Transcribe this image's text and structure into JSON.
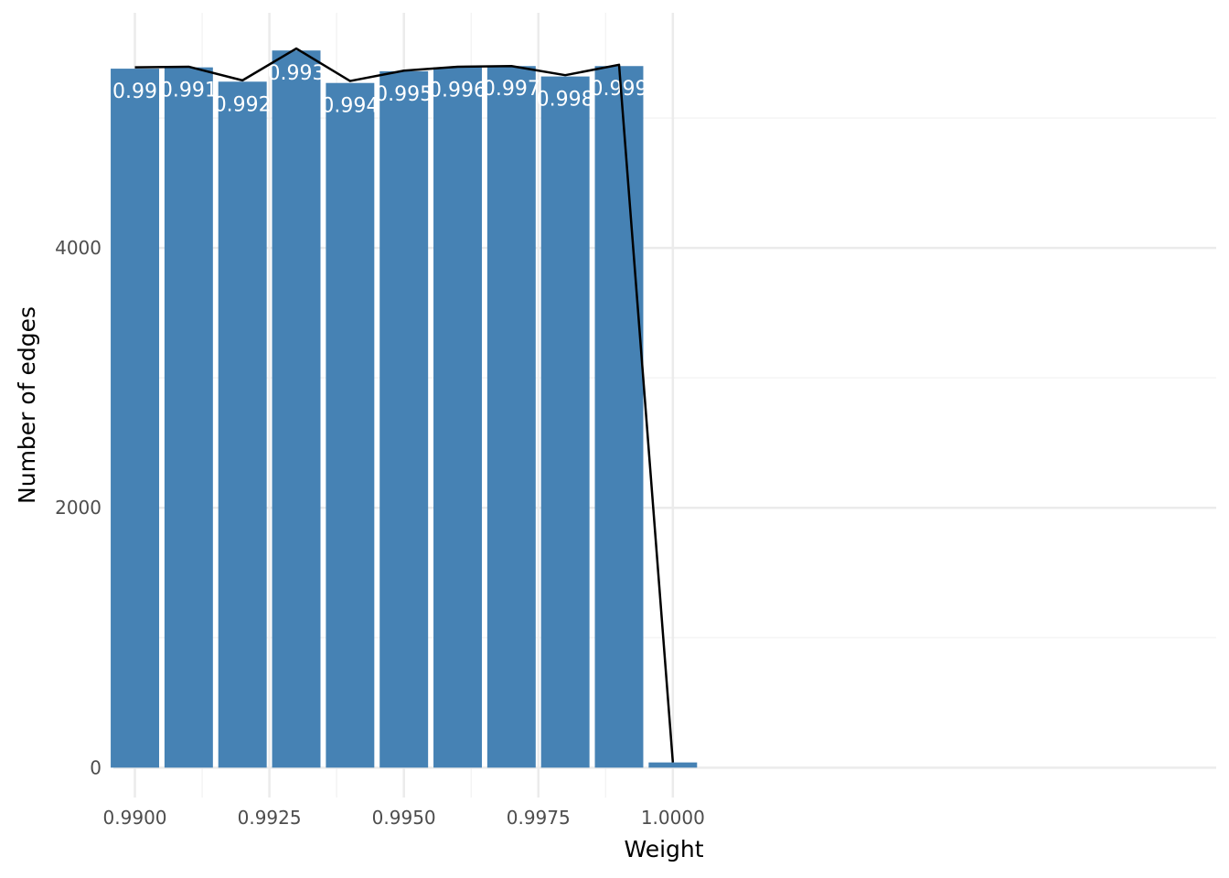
{
  "chart_data": {
    "type": "bar",
    "xlabel": "Weight",
    "ylabel": "Number of edges",
    "x": [
      0.99,
      0.991,
      0.992,
      0.993,
      0.994,
      0.995,
      0.996,
      0.997,
      0.998,
      0.999,
      1.0
    ],
    "values": [
      5380,
      5390,
      5280,
      5520,
      5270,
      5360,
      5390,
      5400,
      5320,
      5400,
      40
    ],
    "bar_labels": [
      "0.99",
      "0.991",
      "0.992",
      "0.993",
      "0.994",
      "0.995",
      "0.996",
      "0.997",
      "0.998",
      "0.999",
      ""
    ],
    "line_values": [
      5390,
      5395,
      5290,
      5535,
      5285,
      5365,
      5395,
      5400,
      5330,
      5410,
      40
    ],
    "xlim": [
      0.9896,
      1.0101
    ],
    "ylim": [
      -230,
      5810
    ],
    "x_ticks": [
      0.99,
      0.9925,
      0.995,
      0.9975,
      1.0
    ],
    "x_tick_labels": [
      "0.9900",
      "0.9925",
      "0.9950",
      "0.9975",
      "1.0000"
    ],
    "y_ticks": [
      0,
      2000,
      4000
    ],
    "y_tick_labels": [
      "0",
      "2000",
      "4000"
    ],
    "grid": true,
    "colors": {
      "bar": "#4682b4",
      "line": "#000000",
      "grid_major": "#ebebeb",
      "grid_minor": "#f4f4f4"
    }
  }
}
